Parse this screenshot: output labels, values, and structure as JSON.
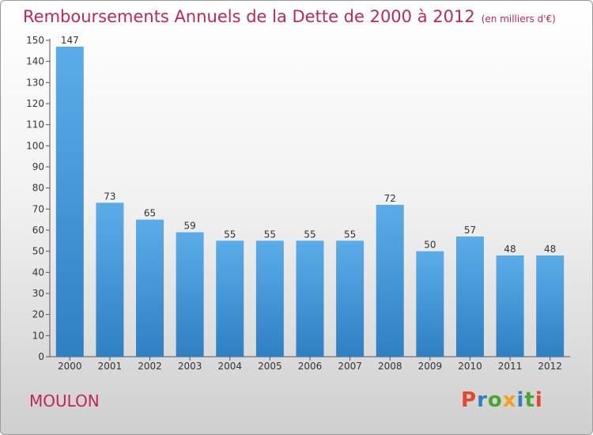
{
  "header": {
    "title": "Remboursements Annuels de la Dette de 2000 à 2012",
    "unit": "(en milliers d'€)"
  },
  "commune": "MOULON",
  "logo": {
    "text": "Proxiti",
    "colors": [
      "#e8462a",
      "#2c7fc1",
      "#4aa52e",
      "#f0a21b",
      "#2c7fc1",
      "#4aa52e",
      "#e8462a"
    ]
  },
  "chart_data": {
    "type": "bar",
    "title": "Remboursements Annuels de la Dette de 2000 à 2012",
    "categories": [
      "2000",
      "2001",
      "2002",
      "2003",
      "2004",
      "2005",
      "2006",
      "2007",
      "2008",
      "2009",
      "2010",
      "2011",
      "2012"
    ],
    "values": [
      147,
      73,
      65,
      59,
      55,
      55,
      55,
      55,
      72,
      50,
      57,
      48,
      48
    ],
    "ylim": [
      0,
      150
    ],
    "yticks": [
      0,
      10,
      20,
      30,
      40,
      50,
      60,
      70,
      80,
      90,
      100,
      110,
      120,
      130,
      140,
      150
    ],
    "grid": false,
    "bar_color": "#4a9fe0"
  }
}
